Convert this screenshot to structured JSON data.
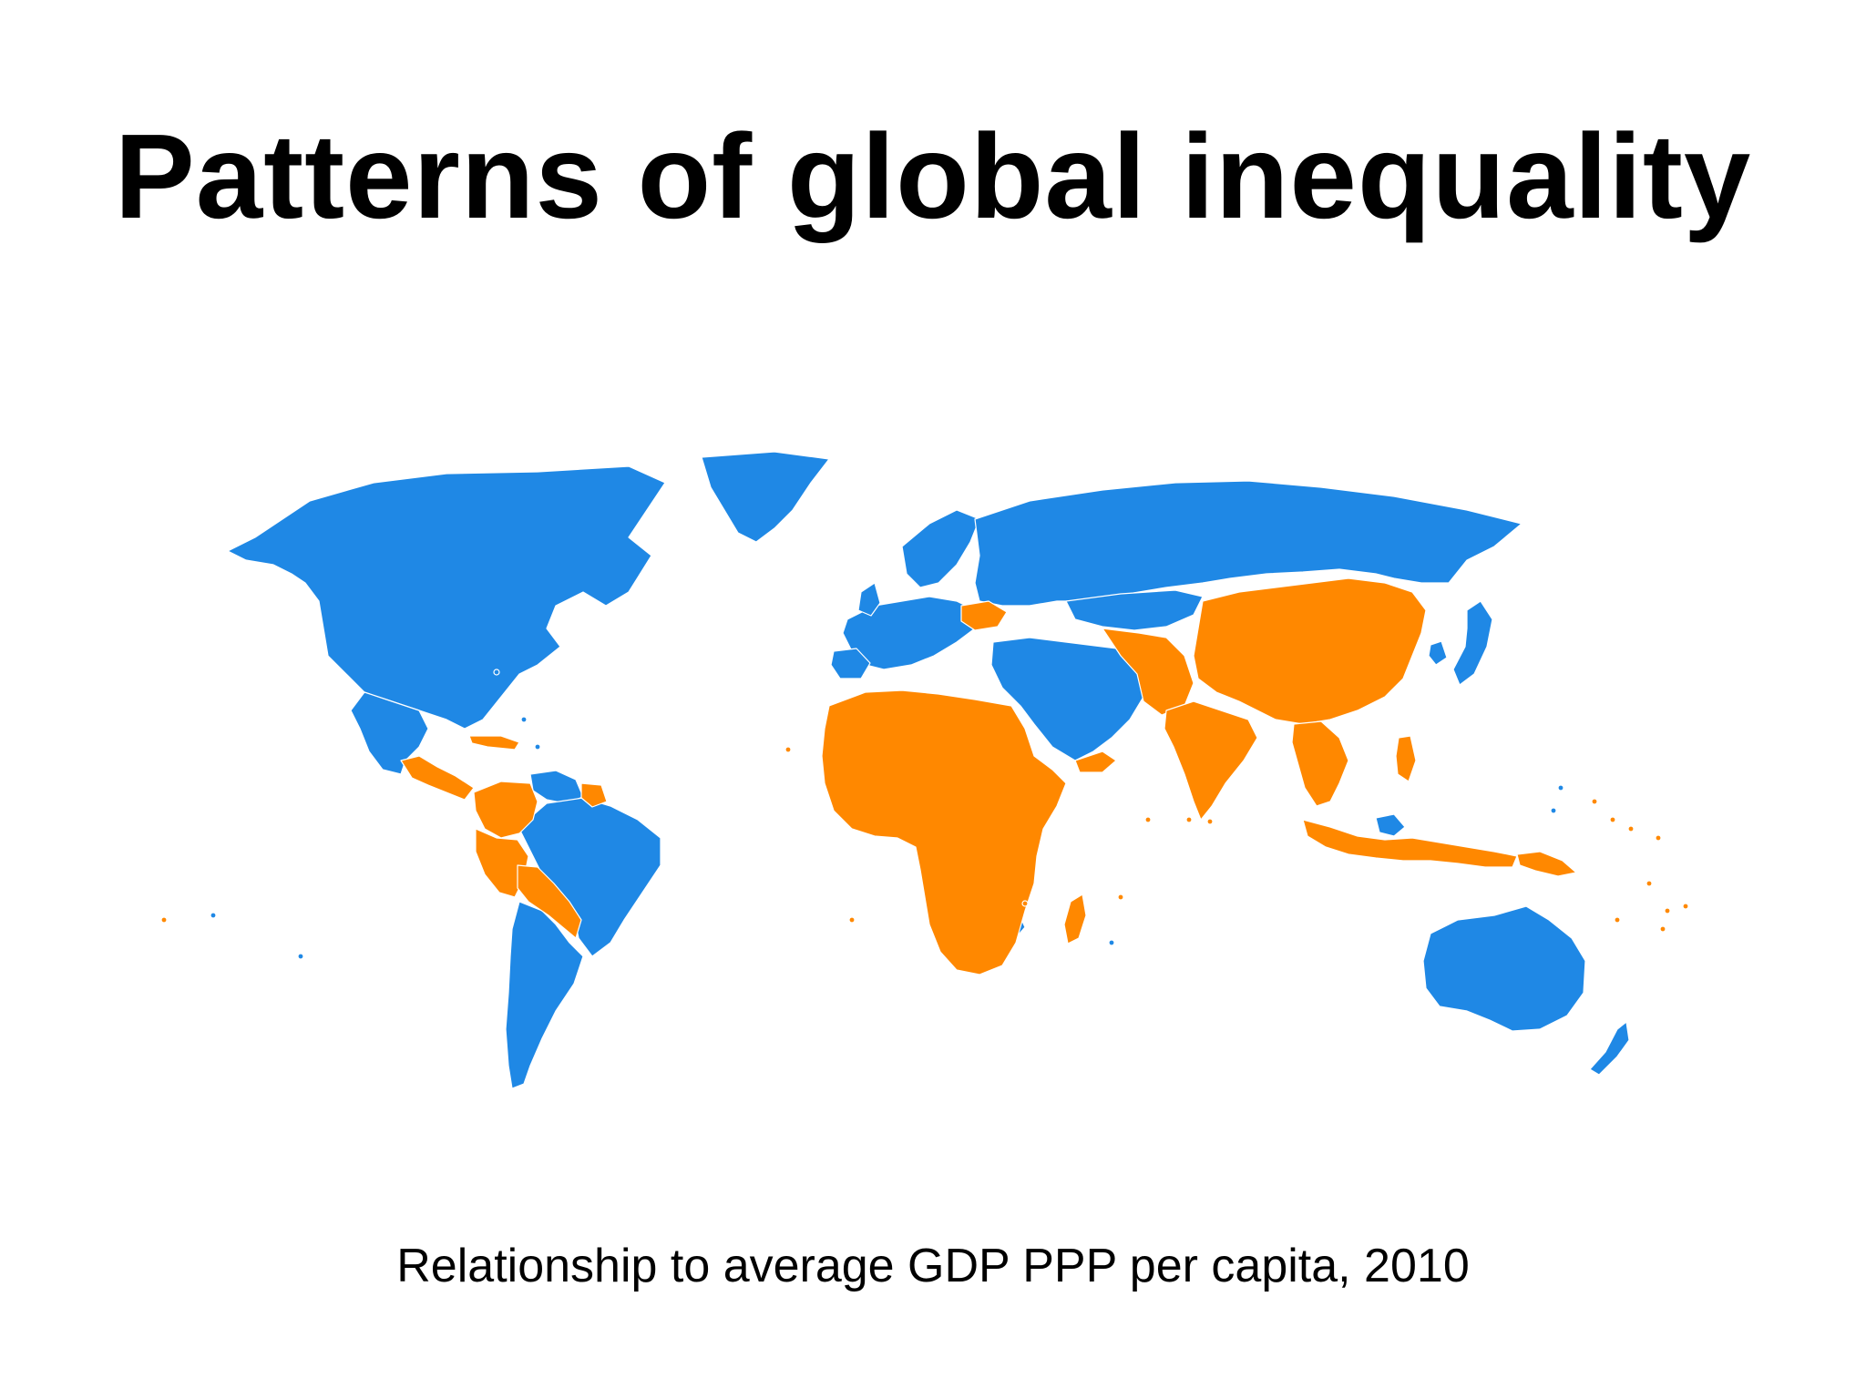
{
  "slide": {
    "title": "Patterns of global inequality",
    "caption": "Relationship to average GDP PPP per capita, 2010"
  },
  "map": {
    "colors": {
      "above_average": "#1f88e5",
      "below_average": "#ff8800",
      "background": "#ffffff"
    },
    "regions": [
      {
        "name": "North America",
        "class": "above_average"
      },
      {
        "name": "Greenland",
        "class": "above_average"
      },
      {
        "name": "Mexico",
        "class": "above_average"
      },
      {
        "name": "Central America",
        "class": "below_average"
      },
      {
        "name": "Caribbean",
        "class": "below_average"
      },
      {
        "name": "Venezuela",
        "class": "above_average"
      },
      {
        "name": "Brazil",
        "class": "above_average"
      },
      {
        "name": "Colombia",
        "class": "below_average"
      },
      {
        "name": "Peru",
        "class": "below_average"
      },
      {
        "name": "Bolivia",
        "class": "below_average"
      },
      {
        "name": "Paraguay",
        "class": "below_average"
      },
      {
        "name": "Argentina and Chile",
        "class": "above_average"
      },
      {
        "name": "Europe",
        "class": "above_average"
      },
      {
        "name": "Ukraine",
        "class": "below_average"
      },
      {
        "name": "Russia",
        "class": "above_average"
      },
      {
        "name": "Kazakhstan",
        "class": "above_average"
      },
      {
        "name": "Central Asia",
        "class": "below_average"
      },
      {
        "name": "Middle East",
        "class": "above_average"
      },
      {
        "name": "Yemen",
        "class": "below_average"
      },
      {
        "name": "North Africa",
        "class": "below_average"
      },
      {
        "name": "Libya",
        "class": "above_average"
      },
      {
        "name": "Sub-Saharan Africa",
        "class": "below_average"
      },
      {
        "name": "Gabon",
        "class": "above_average"
      },
      {
        "name": "Botswana",
        "class": "above_average"
      },
      {
        "name": "Madagascar",
        "class": "below_average"
      },
      {
        "name": "South Asia",
        "class": "below_average"
      },
      {
        "name": "China",
        "class": "below_average"
      },
      {
        "name": "Mongolia",
        "class": "below_average"
      },
      {
        "name": "Japan",
        "class": "above_average"
      },
      {
        "name": "South Korea",
        "class": "above_average"
      },
      {
        "name": "Southeast Asia",
        "class": "below_average"
      },
      {
        "name": "Malaysia",
        "class": "above_average"
      },
      {
        "name": "Indonesia",
        "class": "below_average"
      },
      {
        "name": "Papua New Guinea",
        "class": "below_average"
      },
      {
        "name": "Australia",
        "class": "above_average"
      },
      {
        "name": "New Zealand",
        "class": "above_average"
      },
      {
        "name": "Pacific Islands",
        "class": "below_average"
      }
    ]
  }
}
